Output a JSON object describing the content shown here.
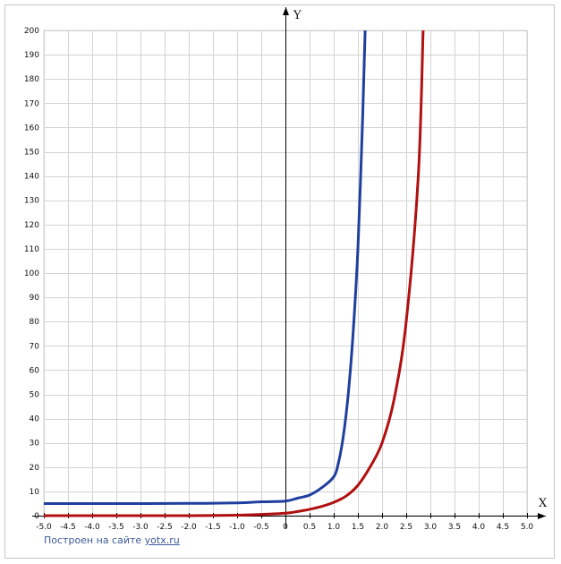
{
  "chart_data": {
    "type": "line",
    "xlabel": "X",
    "ylabel": "Y",
    "xlim": [
      -5,
      5
    ],
    "ylim": [
      0,
      200
    ],
    "x_ticks": [
      "-5.0",
      "-4.5",
      "-4.0",
      "-3.5",
      "-3.0",
      "-2.5",
      "-2.0",
      "-1.5",
      "-1.0",
      "-0.5",
      "0",
      "0.5",
      "1.0",
      "1.5",
      "2.0",
      "2.5",
      "3.0",
      "3.5",
      "4.0",
      "4.5",
      "5.0"
    ],
    "y_ticks": [
      "0",
      "10",
      "20",
      "30",
      "40",
      "50",
      "60",
      "70",
      "80",
      "90",
      "100",
      "110",
      "120",
      "130",
      "140",
      "150",
      "160",
      "170",
      "180",
      "190",
      "200"
    ],
    "grid": true,
    "series": [
      {
        "color": "#1f3f9f",
        "x": [
          -5.0,
          -4.0,
          -3.0,
          -2.0,
          -1.0,
          -0.5,
          0.0,
          0.25,
          0.5,
          0.75,
          1.0,
          1.1,
          1.2,
          1.3,
          1.4,
          1.5,
          1.6,
          1.65
        ],
        "y": [
          5.0,
          5.0,
          5.0,
          5.05,
          5.25,
          5.7,
          6.0,
          7.2,
          8.5,
          11.5,
          16.0,
          22.0,
          33.0,
          50.0,
          75.0,
          110.0,
          165.0,
          200.0
        ]
      },
      {
        "color": "#b01010",
        "x": [
          -5.0,
          -4.0,
          -3.0,
          -2.0,
          -1.0,
          -0.5,
          0.0,
          0.25,
          0.5,
          0.75,
          1.0,
          1.25,
          1.5,
          1.75,
          2.0,
          2.25,
          2.5,
          2.75,
          2.85
        ],
        "y": [
          0.0,
          0.0,
          0.0,
          0.0,
          0.2,
          0.5,
          1.0,
          1.7,
          2.6,
          3.8,
          5.5,
          8.0,
          12.5,
          20.0,
          30.0,
          48.0,
          80.0,
          140.0,
          200.0
        ]
      }
    ]
  },
  "credit": {
    "prefix": "Построен на сайте ",
    "link": "yotx.ru"
  }
}
